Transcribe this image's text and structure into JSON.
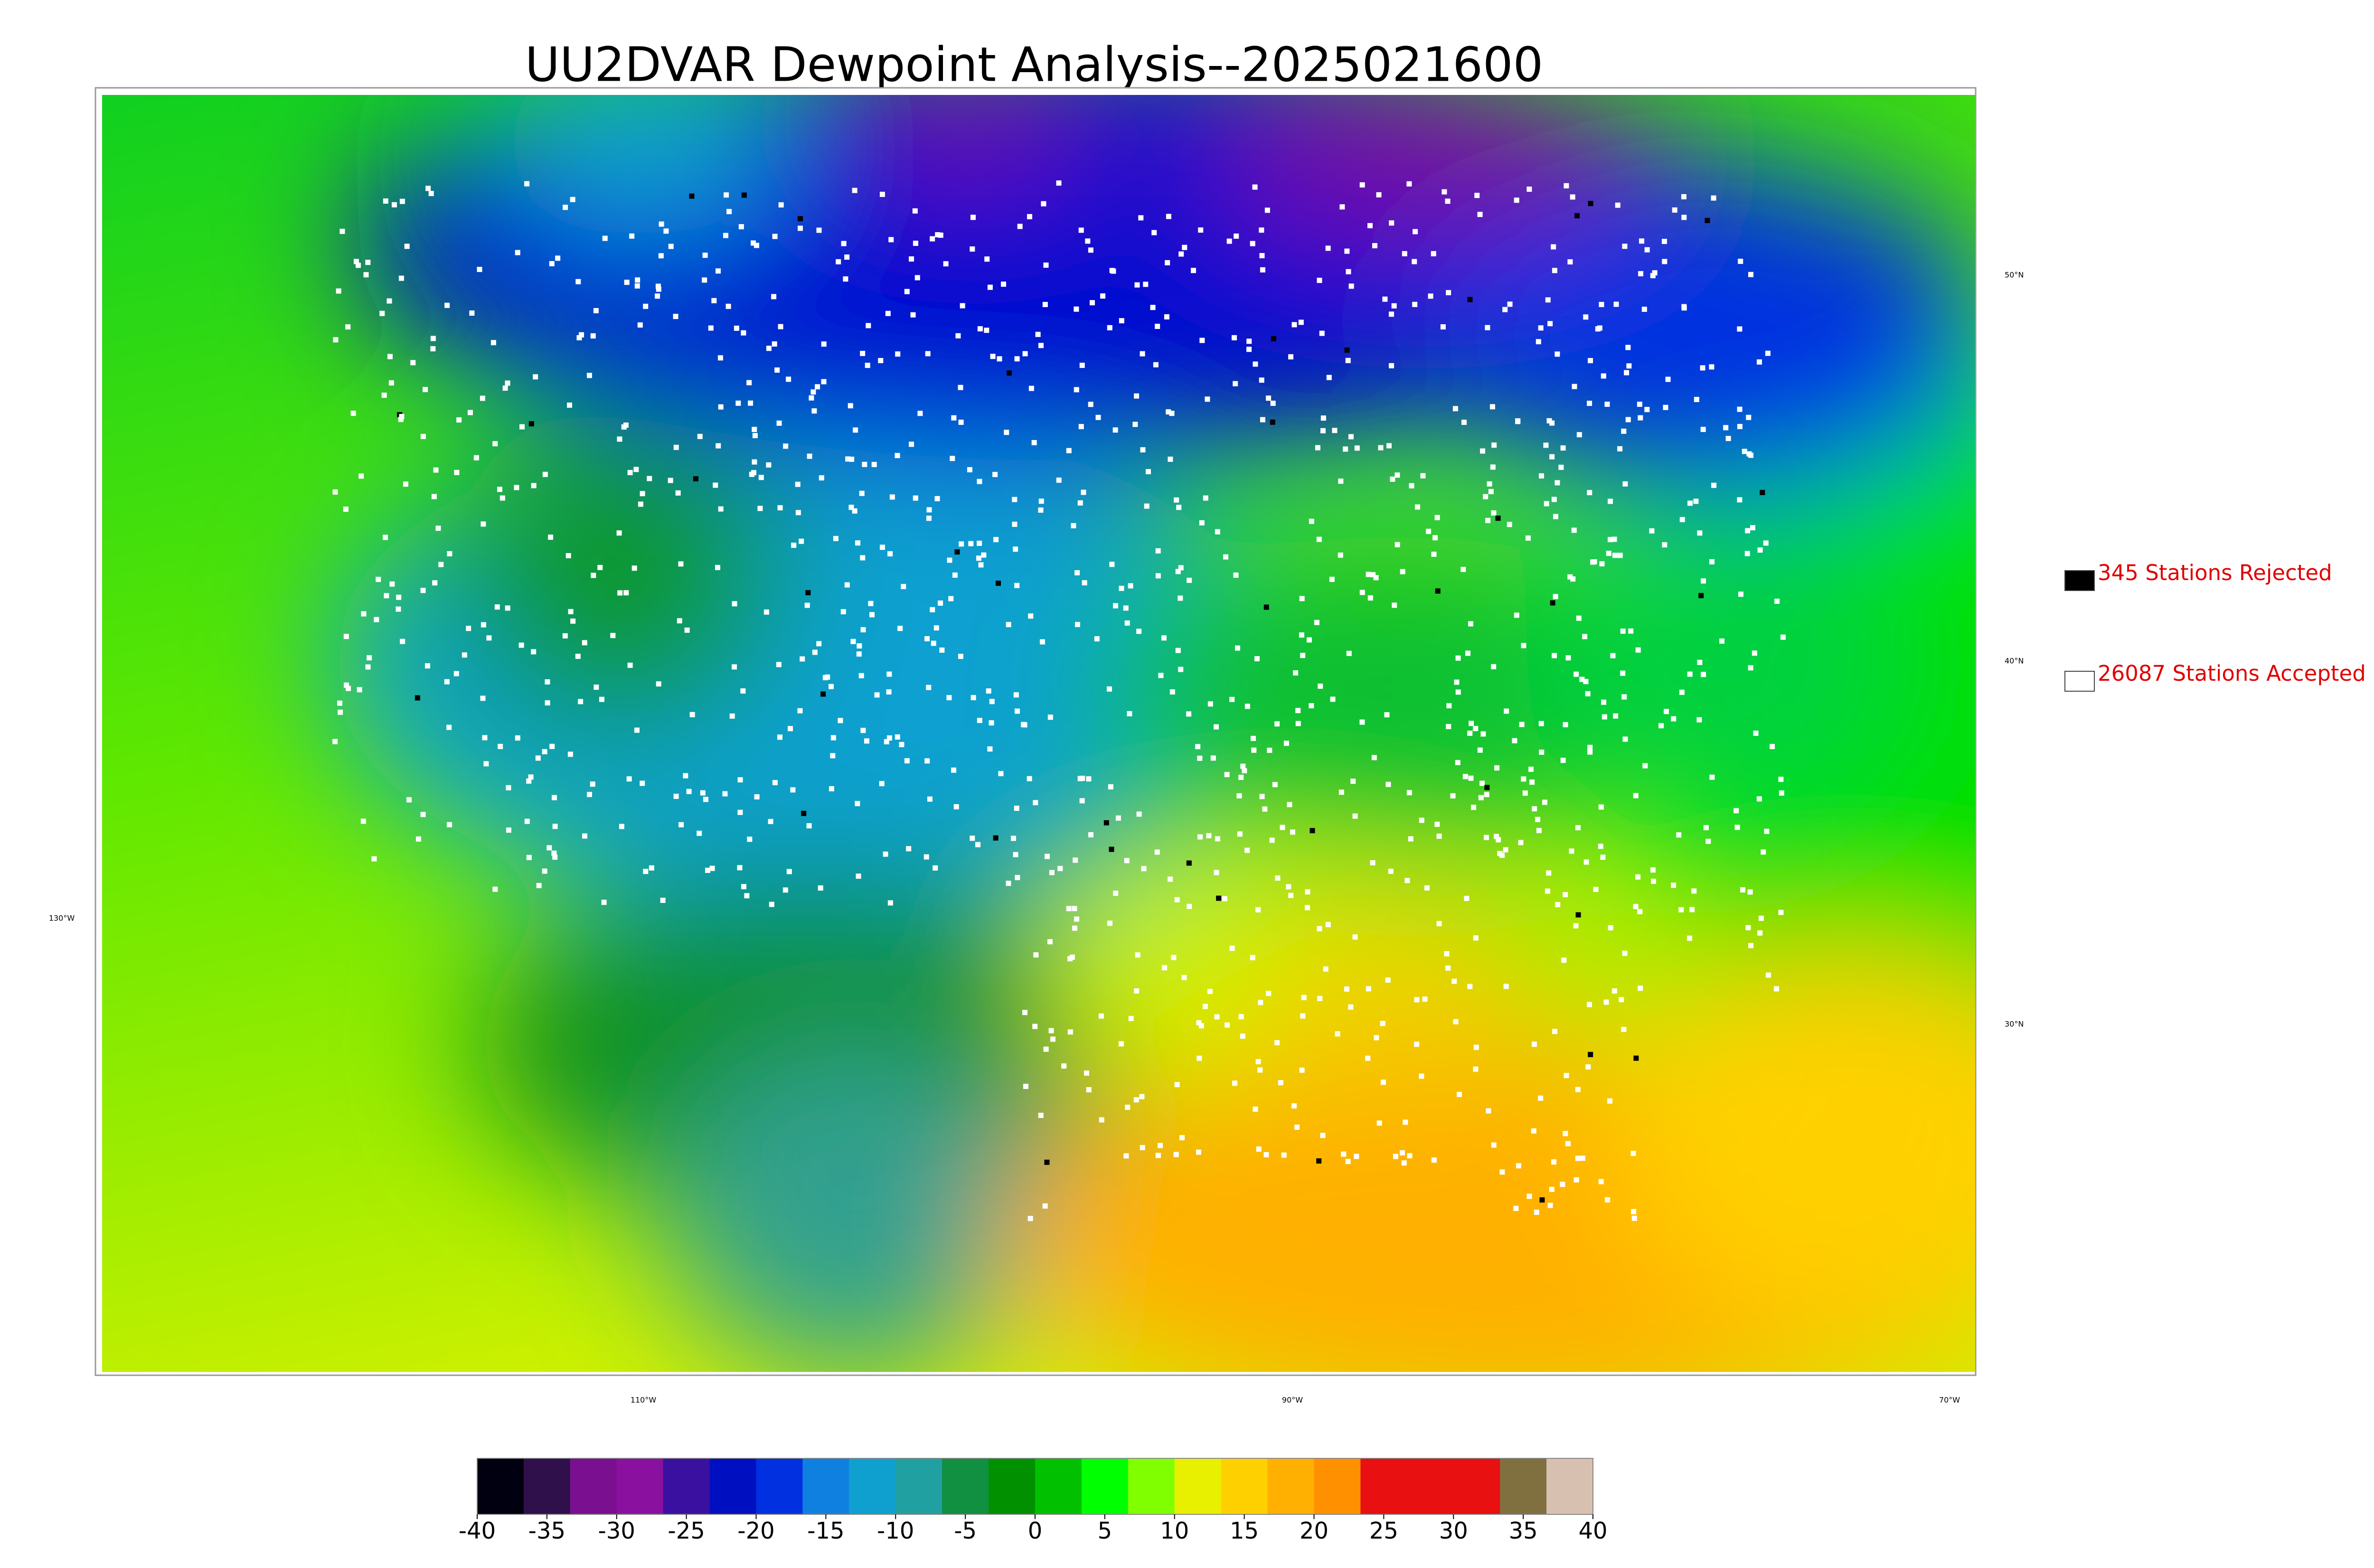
{
  "title": "UU2DVAR Dewpoint Analysis--2025021600",
  "legend": [
    {
      "label": "345 Stations Rejected",
      "color": "#000000"
    },
    {
      "label": "26087 Stations Accepted",
      "color": "#ffffff"
    }
  ],
  "lat_labels": [
    "50°N",
    "40°N",
    "30°N"
  ],
  "lon_labels": [
    "130°W",
    "110°W",
    "90°W",
    "70°W"
  ],
  "colorbar": {
    "range": [
      -40,
      40
    ],
    "ticks": [
      -40,
      -35,
      -30,
      -25,
      -20,
      -15,
      -10,
      -5,
      0,
      5,
      10,
      15,
      20,
      25,
      30,
      35,
      40
    ],
    "colors": [
      "#000010",
      "#30104a",
      "#7a1090",
      "#8a10a0",
      "#3a10a0",
      "#0010c0",
      "#0030e0",
      "#1080e0",
      "#10a0d0",
      "#20a0a0",
      "#109040",
      "#009000",
      "#00c000",
      "#00ff00",
      "#80ff00",
      "#e8f000",
      "#ffd000",
      "#ffb000",
      "#ff9000",
      "#e81010",
      "#e81010",
      "#e81010",
      "#807040",
      "#d8c0b0"
    ]
  }
}
